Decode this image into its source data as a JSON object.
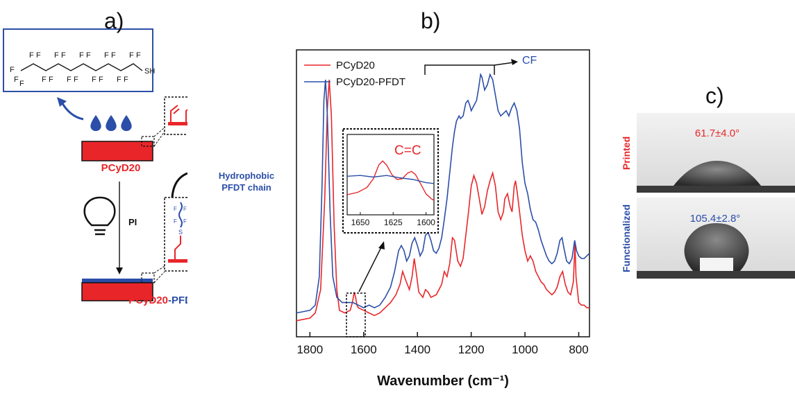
{
  "panel_a": {
    "label": "a)",
    "chem": {
      "f": "F",
      "sh": "SH"
    },
    "substrate_label": "PCyD20",
    "pi_label": "PI",
    "hydrophobic_label_1": "Hydrophobic",
    "hydrophobic_label_2": "PFDT chain",
    "chain_letters": {
      "f": "F",
      "s": "S"
    },
    "product_label_part1": "PCyD20",
    "product_label_part2": "-PFDT",
    "colors": {
      "red": "#e8262a",
      "blue": "#2b4ea8"
    }
  },
  "panel_b": {
    "label": "b)",
    "cf_label": "CF",
    "inset_label": "C=C",
    "inset_ticks": [
      "1650",
      "1625",
      "1600"
    ]
  },
  "panel_c": {
    "label": "c)",
    "printed_label": "Printed",
    "printed_angle": "61.7±4.0°",
    "functionalized_label": "Functionalized",
    "functionalized_angle": "105.4±2.8°"
  },
  "chart_data": {
    "type": "line",
    "xlabel": "Wavenumber (cm⁻¹)",
    "ylabel": "",
    "xlim": [
      1850,
      760
    ],
    "ylim": [
      0,
      1
    ],
    "xticks": [
      "1800",
      "1600",
      "1400",
      "1200",
      "1000",
      "800"
    ],
    "grid": false,
    "legend_position": "top-left",
    "series": [
      {
        "name": "PCyD20",
        "color": "#e8262a",
        "points": [
          [
            1850,
            0.03
          ],
          [
            1800,
            0.04
          ],
          [
            1780,
            0.06
          ],
          [
            1760,
            0.15
          ],
          [
            1745,
            0.5
          ],
          [
            1735,
            0.85
          ],
          [
            1728,
            0.96
          ],
          [
            1720,
            0.82
          ],
          [
            1710,
            0.4
          ],
          [
            1700,
            0.15
          ],
          [
            1690,
            0.07
          ],
          [
            1670,
            0.06
          ],
          [
            1650,
            0.07
          ],
          [
            1642,
            0.1
          ],
          [
            1635,
            0.14
          ],
          [
            1630,
            0.12
          ],
          [
            1625,
            0.09
          ],
          [
            1620,
            0.08
          ],
          [
            1600,
            0.07
          ],
          [
            1580,
            0.06
          ],
          [
            1560,
            0.05
          ],
          [
            1540,
            0.06
          ],
          [
            1520,
            0.08
          ],
          [
            1500,
            0.1
          ],
          [
            1480,
            0.13
          ],
          [
            1465,
            0.17
          ],
          [
            1455,
            0.22
          ],
          [
            1445,
            0.19
          ],
          [
            1430,
            0.15
          ],
          [
            1420,
            0.2
          ],
          [
            1412,
            0.27
          ],
          [
            1405,
            0.22
          ],
          [
            1395,
            0.14
          ],
          [
            1380,
            0.12
          ],
          [
            1370,
            0.15
          ],
          [
            1360,
            0.14
          ],
          [
            1350,
            0.12
          ],
          [
            1330,
            0.13
          ],
          [
            1310,
            0.17
          ],
          [
            1300,
            0.22
          ],
          [
            1290,
            0.2
          ],
          [
            1280,
            0.25
          ],
          [
            1270,
            0.35
          ],
          [
            1262,
            0.34
          ],
          [
            1250,
            0.26
          ],
          [
            1240,
            0.24
          ],
          [
            1230,
            0.27
          ],
          [
            1220,
            0.36
          ],
          [
            1210,
            0.45
          ],
          [
            1200,
            0.55
          ],
          [
            1190,
            0.59
          ],
          [
            1180,
            0.56
          ],
          [
            1170,
            0.5
          ],
          [
            1160,
            0.44
          ],
          [
            1150,
            0.47
          ],
          [
            1140,
            0.53
          ],
          [
            1130,
            0.57
          ],
          [
            1120,
            0.6
          ],
          [
            1110,
            0.55
          ],
          [
            1100,
            0.45
          ],
          [
            1090,
            0.42
          ],
          [
            1080,
            0.45
          ],
          [
            1075,
            0.5
          ],
          [
            1065,
            0.52
          ],
          [
            1055,
            0.47
          ],
          [
            1048,
            0.45
          ],
          [
            1040,
            0.55
          ],
          [
            1035,
            0.57
          ],
          [
            1028,
            0.52
          ],
          [
            1020,
            0.45
          ],
          [
            1010,
            0.36
          ],
          [
            1000,
            0.3
          ],
          [
            990,
            0.26
          ],
          [
            980,
            0.28
          ],
          [
            970,
            0.26
          ],
          [
            960,
            0.22
          ],
          [
            950,
            0.2
          ],
          [
            940,
            0.18
          ],
          [
            930,
            0.17
          ],
          [
            920,
            0.15
          ],
          [
            910,
            0.14
          ],
          [
            900,
            0.13
          ],
          [
            890,
            0.14
          ],
          [
            880,
            0.16
          ],
          [
            870,
            0.2
          ],
          [
            860,
            0.22
          ],
          [
            850,
            0.17
          ],
          [
            840,
            0.14
          ],
          [
            830,
            0.13
          ],
          [
            820,
            0.18
          ],
          [
            814,
            0.33
          ],
          [
            810,
            0.2
          ],
          [
            800,
            0.1
          ],
          [
            790,
            0.09
          ],
          [
            780,
            0.09
          ],
          [
            770,
            0.08
          ],
          [
            760,
            0.08
          ]
        ]
      },
      {
        "name": "PCyD20-PFDT",
        "color": "#2b4ea8",
        "points": [
          [
            1850,
            0.06
          ],
          [
            1800,
            0.07
          ],
          [
            1780,
            0.09
          ],
          [
            1765,
            0.2
          ],
          [
            1755,
            0.55
          ],
          [
            1748,
            0.88
          ],
          [
            1742,
            0.96
          ],
          [
            1735,
            0.82
          ],
          [
            1725,
            0.45
          ],
          [
            1715,
            0.2
          ],
          [
            1700,
            0.12
          ],
          [
            1680,
            0.1
          ],
          [
            1660,
            0.1
          ],
          [
            1640,
            0.1
          ],
          [
            1620,
            0.09
          ],
          [
            1600,
            0.08
          ],
          [
            1580,
            0.09
          ],
          [
            1560,
            0.08
          ],
          [
            1540,
            0.09
          ],
          [
            1520,
            0.12
          ],
          [
            1500,
            0.16
          ],
          [
            1485,
            0.22
          ],
          [
            1470,
            0.3
          ],
          [
            1460,
            0.32
          ],
          [
            1450,
            0.3
          ],
          [
            1440,
            0.26
          ],
          [
            1430,
            0.28
          ],
          [
            1420,
            0.33
          ],
          [
            1410,
            0.35
          ],
          [
            1400,
            0.32
          ],
          [
            1390,
            0.28
          ],
          [
            1380,
            0.3
          ],
          [
            1370,
            0.36
          ],
          [
            1360,
            0.37
          ],
          [
            1350,
            0.34
          ],
          [
            1340,
            0.3
          ],
          [
            1330,
            0.29
          ],
          [
            1320,
            0.31
          ],
          [
            1310,
            0.35
          ],
          [
            1300,
            0.42
          ],
          [
            1290,
            0.5
          ],
          [
            1280,
            0.6
          ],
          [
            1270,
            0.7
          ],
          [
            1262,
            0.76
          ],
          [
            1255,
            0.8
          ],
          [
            1245,
            0.82
          ],
          [
            1240,
            0.81
          ],
          [
            1230,
            0.82
          ],
          [
            1220,
            0.87
          ],
          [
            1212,
            0.88
          ],
          [
            1205,
            0.86
          ],
          [
            1200,
            0.84
          ],
          [
            1190,
            0.86
          ],
          [
            1180,
            0.88
          ],
          [
            1172,
            0.93
          ],
          [
            1165,
            0.98
          ],
          [
            1160,
            0.97
          ],
          [
            1150,
            0.92
          ],
          [
            1140,
            0.94
          ],
          [
            1130,
            0.98
          ],
          [
            1120,
            0.96
          ],
          [
            1110,
            0.9
          ],
          [
            1100,
            0.84
          ],
          [
            1090,
            0.82
          ],
          [
            1080,
            0.83
          ],
          [
            1070,
            0.84
          ],
          [
            1060,
            0.82
          ],
          [
            1050,
            0.85
          ],
          [
            1040,
            0.87
          ],
          [
            1030,
            0.84
          ],
          [
            1020,
            0.77
          ],
          [
            1010,
            0.64
          ],
          [
            1000,
            0.56
          ],
          [
            990,
            0.52
          ],
          [
            980,
            0.46
          ],
          [
            970,
            0.42
          ],
          [
            960,
            0.41
          ],
          [
            950,
            0.38
          ],
          [
            940,
            0.34
          ],
          [
            930,
            0.31
          ],
          [
            920,
            0.28
          ],
          [
            910,
            0.26
          ],
          [
            900,
            0.25
          ],
          [
            890,
            0.26
          ],
          [
            880,
            0.29
          ],
          [
            870,
            0.34
          ],
          [
            862,
            0.35
          ],
          [
            855,
            0.31
          ],
          [
            845,
            0.26
          ],
          [
            835,
            0.25
          ],
          [
            825,
            0.27
          ],
          [
            815,
            0.34
          ],
          [
            808,
            0.3
          ],
          [
            800,
            0.28
          ],
          [
            790,
            0.27
          ],
          [
            780,
            0.27
          ],
          [
            770,
            0.28
          ],
          [
            760,
            0.29
          ]
        ]
      }
    ],
    "inset": {
      "xlim": [
        1660,
        1594
      ],
      "series": [
        {
          "name": "PCyD20",
          "color": "#e8262a",
          "points": [
            [
              1660,
              0.25
            ],
            [
              1652,
              0.28
            ],
            [
              1645,
              0.34
            ],
            [
              1640,
              0.45
            ],
            [
              1636,
              0.62
            ],
            [
              1633,
              0.67
            ],
            [
              1630,
              0.62
            ],
            [
              1626,
              0.5
            ],
            [
              1622,
              0.44
            ],
            [
              1618,
              0.45
            ],
            [
              1614,
              0.52
            ],
            [
              1611,
              0.54
            ],
            [
              1608,
              0.5
            ],
            [
              1604,
              0.38
            ],
            [
              1600,
              0.26
            ],
            [
              1596,
              0.2
            ],
            [
              1594,
              0.18
            ]
          ]
        },
        {
          "name": "PCyD20-PFDT",
          "color": "#2b4ea8",
          "points": [
            [
              1660,
              0.48
            ],
            [
              1650,
              0.49
            ],
            [
              1640,
              0.47
            ],
            [
              1630,
              0.49
            ],
            [
              1620,
              0.46
            ],
            [
              1610,
              0.44
            ],
            [
              1600,
              0.4
            ],
            [
              1594,
              0.39
            ]
          ]
        }
      ]
    }
  }
}
